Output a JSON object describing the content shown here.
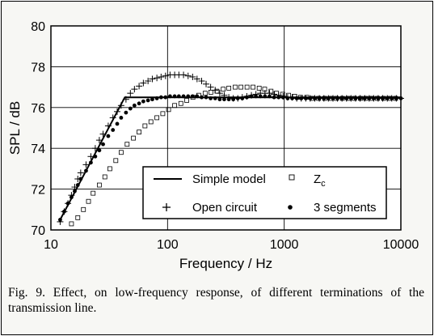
{
  "chart_data": {
    "type": "scatter",
    "xlabel": "Frequency / Hz",
    "ylabel": "SPL  / dB",
    "xscale": "log",
    "xlim": [
      10,
      10000
    ],
    "ylim": [
      70,
      80
    ],
    "xticks": [
      "10",
      "100",
      "1000",
      "10000"
    ],
    "yticks": [
      "70",
      "72",
      "74",
      "76",
      "78",
      "80"
    ],
    "grid": "major",
    "legend_position": "bottom-center",
    "legend": {
      "simple": "Simple model",
      "zc_main": "Z",
      "zc_sub": "c",
      "open": "Open circuit",
      "seg": "3 segments"
    },
    "series": [
      {
        "name": "Simple model",
        "style": "line",
        "x": [
          12,
          43,
          10000
        ],
        "y": [
          70.5,
          76.5,
          76.5
        ]
      },
      {
        "name": "Zc",
        "style": "open-square",
        "x": [
          15,
          17,
          19,
          21,
          23,
          26,
          29,
          32,
          36,
          40,
          45,
          51,
          57,
          64,
          72,
          81,
          91,
          102,
          115,
          130,
          146,
          165,
          185,
          210,
          235,
          265,
          300,
          335,
          380,
          425,
          480,
          540,
          610,
          680,
          770,
          860,
          970,
          1090,
          1230,
          1380,
          1560,
          1750,
          1970,
          2220,
          2500,
          2800,
          3150,
          3550,
          4000,
          4500,
          5000,
          5600,
          6300,
          7100,
          8000,
          9000
        ],
        "y": [
          70.3,
          70.6,
          71.0,
          71.4,
          71.8,
          72.2,
          72.6,
          73.0,
          73.4,
          73.8,
          74.2,
          74.5,
          74.8,
          75.1,
          75.3,
          75.5,
          75.7,
          75.9,
          76.1,
          76.2,
          76.35,
          76.5,
          76.6,
          76.7,
          76.75,
          76.8,
          76.9,
          76.95,
          77.0,
          77.0,
          77.0,
          77.0,
          76.95,
          76.9,
          76.8,
          76.7,
          76.65,
          76.6,
          76.55,
          76.5,
          76.5,
          76.45,
          76.45,
          76.45,
          76.45,
          76.45,
          76.45,
          76.45,
          76.45,
          76.45,
          76.45,
          76.45,
          76.45,
          76.45,
          76.45,
          76.45
        ]
      },
      {
        "name": "Open circuit",
        "style": "plus",
        "x": [
          12,
          13,
          14,
          15,
          16,
          17,
          18,
          20,
          22,
          24,
          26,
          28,
          31,
          34,
          37,
          40,
          44,
          48,
          52,
          57,
          62,
          68,
          74,
          81,
          88,
          96,
          105,
          115,
          125,
          137,
          150,
          164,
          179,
          196,
          214,
          234,
          256,
          280,
          306,
          335,
          366,
          400,
          437,
          478,
          523,
          572,
          625,
          684,
          748,
          818,
          895,
          978,
          1070,
          1170,
          1280,
          1400,
          1530,
          1670,
          1830,
          2000,
          2190,
          2390,
          2620,
          2860,
          3130,
          3420,
          3740,
          4090,
          4470,
          4890,
          5350,
          5850,
          6390,
          6990,
          7650,
          8360,
          9140,
          10000
        ],
        "y": [
          70.4,
          70.9,
          71.3,
          71.7,
          72.1,
          72.5,
          72.8,
          73.2,
          73.6,
          74.0,
          74.4,
          74.7,
          75.1,
          75.5,
          75.8,
          76.1,
          76.4,
          76.7,
          76.9,
          77.05,
          77.2,
          77.3,
          77.4,
          77.45,
          77.5,
          77.55,
          77.6,
          77.6,
          77.6,
          77.6,
          77.55,
          77.5,
          77.4,
          77.3,
          77.15,
          77.0,
          76.85,
          76.7,
          76.6,
          76.5,
          76.45,
          76.45,
          76.5,
          76.55,
          76.6,
          76.65,
          76.7,
          76.7,
          76.7,
          76.65,
          76.6,
          76.55,
          76.5,
          76.5,
          76.45,
          76.45,
          76.45,
          76.45,
          76.45,
          76.45,
          76.45,
          76.45,
          76.45,
          76.45,
          76.45,
          76.45,
          76.45,
          76.45,
          76.45,
          76.45,
          76.45,
          76.45,
          76.45,
          76.45,
          76.45,
          76.45,
          76.45,
          76.45
        ]
      },
      {
        "name": "3 segments",
        "style": "filled-circle",
        "x": [
          12,
          13,
          14,
          15,
          16,
          17,
          18,
          20,
          22,
          24,
          26,
          28,
          31,
          34,
          37,
          40,
          44,
          48,
          52,
          57,
          62,
          68,
          74,
          81,
          88,
          96,
          105,
          115,
          125,
          137,
          150,
          164,
          179,
          196,
          214,
          234,
          256,
          280,
          306,
          335,
          366,
          400,
          437,
          478,
          523,
          572,
          625,
          684,
          748,
          818,
          895,
          978,
          1070,
          1170,
          1280,
          1400,
          1530,
          1670,
          1830,
          2000,
          2190,
          2390,
          2620,
          2860,
          3130,
          3420,
          3740,
          4090,
          4470,
          4890,
          5350,
          5850,
          6390,
          6990,
          7650,
          8360,
          9140,
          10000
        ],
        "y": [
          70.5,
          70.9,
          71.3,
          71.6,
          71.9,
          72.2,
          72.5,
          72.9,
          73.3,
          73.6,
          73.9,
          74.2,
          74.6,
          74.9,
          75.2,
          75.5,
          75.75,
          75.95,
          76.1,
          76.2,
          76.3,
          76.35,
          76.4,
          76.45,
          76.5,
          76.5,
          76.55,
          76.55,
          76.55,
          76.55,
          76.55,
          76.55,
          76.55,
          76.5,
          76.5,
          76.45,
          76.45,
          76.4,
          76.4,
          76.4,
          76.4,
          76.45,
          76.45,
          76.5,
          76.55,
          76.55,
          76.55,
          76.55,
          76.55,
          76.5,
          76.5,
          76.5,
          76.45,
          76.45,
          76.45,
          76.45,
          76.45,
          76.45,
          76.45,
          76.45,
          76.45,
          76.45,
          76.45,
          76.45,
          76.45,
          76.45,
          76.45,
          76.45,
          76.45,
          76.45,
          76.45,
          76.45,
          76.45,
          76.45,
          76.45,
          76.45,
          76.45,
          76.45
        ]
      }
    ]
  },
  "caption": "Fig. 9. Effect, on low-frequency response, of different terminations of the transmission line."
}
